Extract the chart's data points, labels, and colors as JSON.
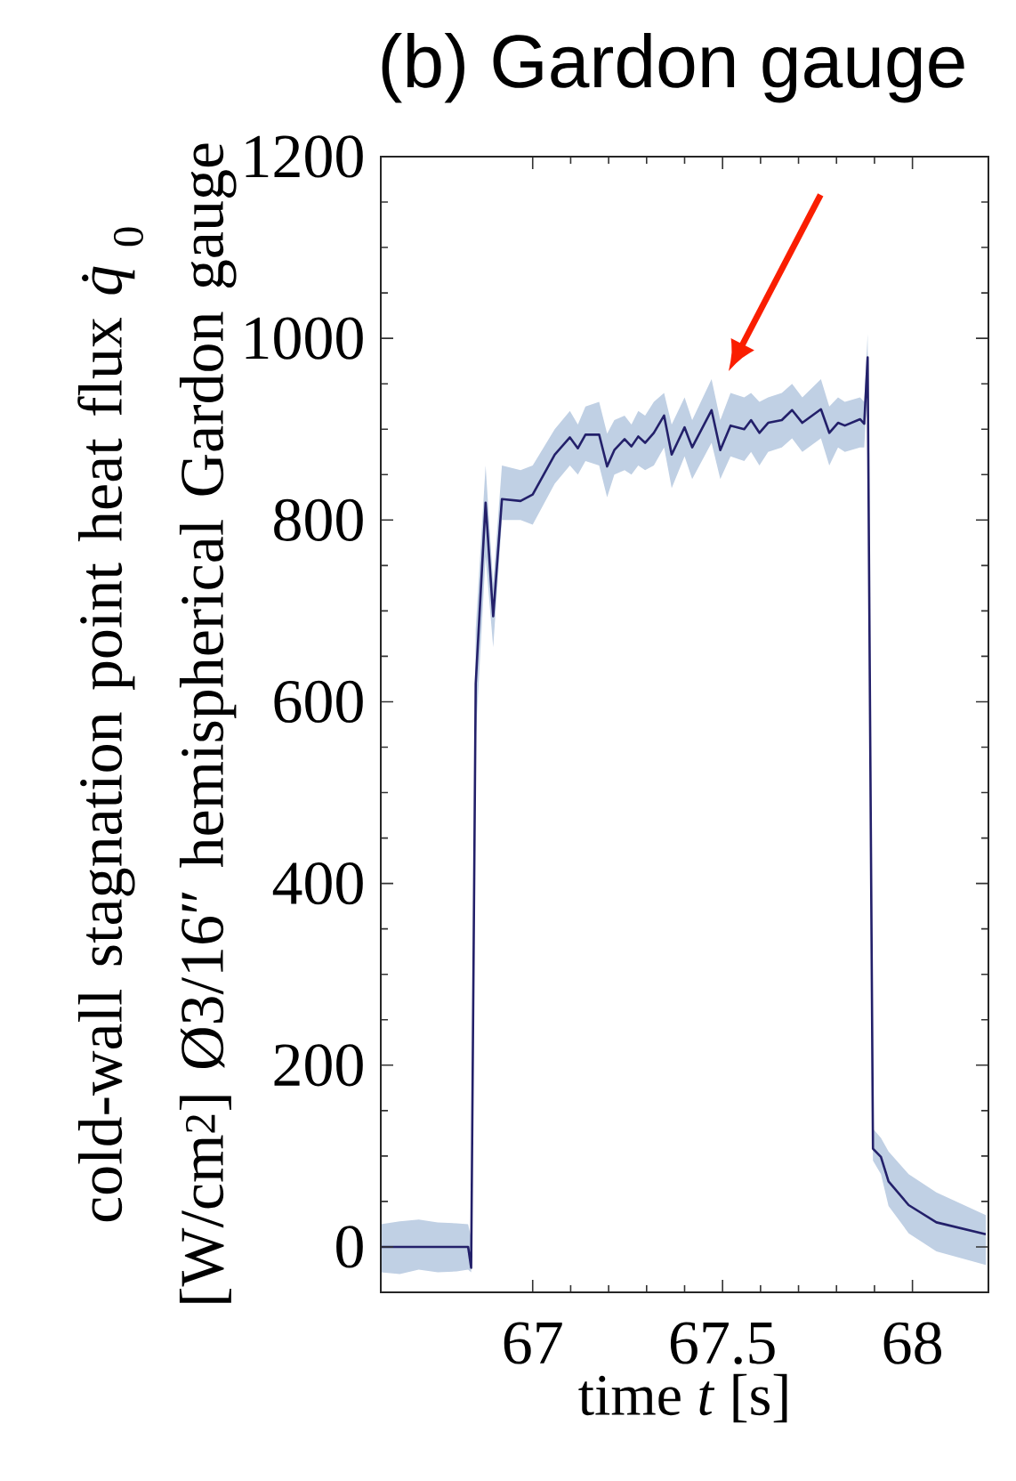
{
  "chart_data": {
    "type": "line",
    "title": "(b) Gardon gauge",
    "xlabel": "time *t* [s]",
    "ylabel": "cold-wall stagnation point heat flux *q̇*$_{0}$ [W/cm$^{2}$] Ø3/16″ hemispherical Gardon gauge",
    "xlim": [
      66.6,
      68.2
    ],
    "ylim": [
      -50,
      1200
    ],
    "xticks": [
      67,
      67.5,
      68
    ],
    "yticks": [
      0,
      200,
      400,
      600,
      800,
      1000,
      1200
    ],
    "grid": false,
    "marker": "none",
    "line_style": "solid",
    "series": [
      {
        "color": "#23206a",
        "x": [
          66.6,
          66.65,
          66.7,
          66.75,
          66.8,
          66.83,
          66.838,
          66.85,
          66.876,
          66.896,
          66.919,
          66.968,
          67.0,
          67.058,
          67.098,
          67.119,
          67.139,
          67.175,
          67.196,
          67.215,
          67.242,
          67.26,
          67.278,
          67.296,
          67.319,
          67.346,
          67.366,
          67.4,
          67.42,
          67.471,
          67.494,
          67.521,
          67.557,
          67.575,
          67.597,
          67.62,
          67.656,
          67.683,
          67.71,
          67.759,
          67.781,
          67.804,
          67.822,
          67.862,
          67.873,
          67.882,
          67.896,
          67.917,
          67.937,
          67.99,
          68.063,
          68.193
        ],
        "values": [
          0,
          0,
          0,
          0,
          0,
          0,
          -23,
          620,
          819,
          694,
          823,
          821,
          828,
          872,
          891,
          879,
          894,
          894,
          859,
          877,
          889,
          881,
          892,
          885,
          896,
          915,
          872,
          902,
          880,
          921,
          877,
          904,
          900,
          910,
          896,
          907,
          910,
          921,
          907,
          922,
          896,
          907,
          904,
          911,
          906,
          979,
          108,
          99,
          72,
          46,
          27,
          14
        ],
        "lower": [
          -28,
          -30,
          -25,
          -28,
          -27,
          -25,
          -28,
          560,
          760,
          660,
          800,
          800,
          795,
          840,
          860,
          850,
          865,
          860,
          825,
          850,
          855,
          850,
          860,
          855,
          860,
          880,
          835,
          870,
          845,
          885,
          845,
          870,
          865,
          875,
          860,
          875,
          880,
          890,
          875,
          890,
          860,
          880,
          875,
          880,
          880,
          950,
          95,
          80,
          45,
          15,
          -5,
          -20
        ],
        "upper": [
          25,
          28,
          30,
          27,
          26,
          25,
          10,
          680,
          860,
          730,
          860,
          855,
          860,
          900,
          920,
          905,
          925,
          930,
          895,
          910,
          915,
          905,
          920,
          915,
          930,
          940,
          905,
          935,
          910,
          955,
          910,
          940,
          935,
          940,
          930,
          935,
          940,
          950,
          935,
          955,
          925,
          935,
          930,
          935,
          930,
          1005,
          130,
          120,
          105,
          80,
          60,
          35
        ]
      }
    ]
  }
}
